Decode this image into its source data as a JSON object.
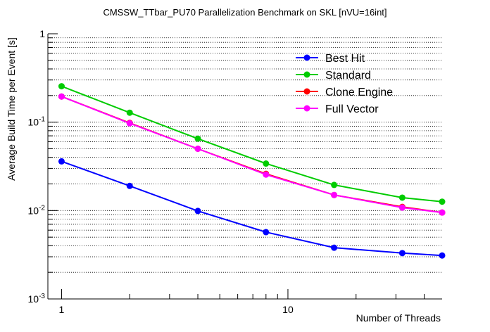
{
  "chart_data": {
    "type": "line",
    "title": "CMSSW_TTbar_PU70 Parallelization Benchmark on SKL [nVU=16int]",
    "xlabel": "Number of Threads",
    "ylabel": "Average Build Time per Event [s]",
    "x": [
      1,
      2,
      4,
      8,
      16,
      32,
      48
    ],
    "xscale": "log",
    "yscale": "log",
    "xlim": [
      0.87,
      48
    ],
    "ylim": [
      0.001,
      1
    ],
    "grid": "horizontal",
    "legend_position": "top-right",
    "x_ticks": [
      {
        "value": 1,
        "label": "1"
      },
      {
        "value": 10,
        "label": "10"
      }
    ],
    "y_ticks": [
      {
        "value": 0.001,
        "base": "10",
        "exp": "-3"
      },
      {
        "value": 0.01,
        "base": "10",
        "exp": "-2"
      },
      {
        "value": 0.1,
        "base": "10",
        "exp": "-1"
      },
      {
        "value": 1,
        "base": "1",
        "exp": ""
      }
    ],
    "series": [
      {
        "name": "Best Hit",
        "color": "#0000ff",
        "values": [
          0.036,
          0.019,
          0.0099,
          0.0057,
          0.0038,
          0.0033,
          0.0031
        ]
      },
      {
        "name": "Standard",
        "color": "#00cc00",
        "values": [
          0.255,
          0.128,
          0.065,
          0.034,
          0.0195,
          0.014,
          0.0126
        ]
      },
      {
        "name": "Clone Engine",
        "color": "#ff0000",
        "values": [
          0.195,
          0.098,
          0.05,
          0.026,
          0.015,
          0.011,
          0.0095
        ]
      },
      {
        "name": "Full Vector",
        "color": "#ff00ff",
        "values": [
          0.195,
          0.097,
          0.05,
          0.0255,
          0.015,
          0.0108,
          0.0095
        ]
      }
    ]
  }
}
